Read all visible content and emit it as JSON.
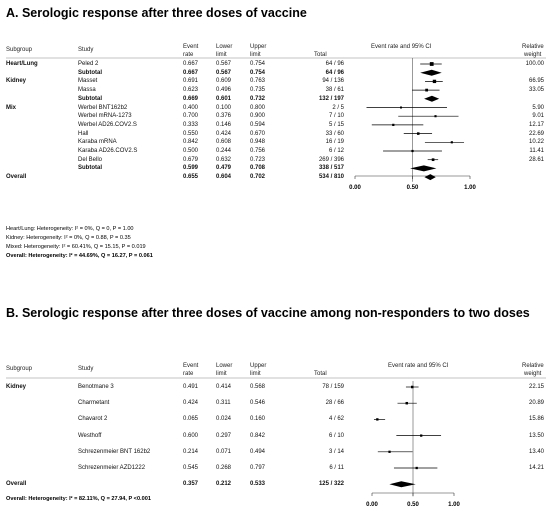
{
  "panels": [
    {
      "title": "A. Serologic response after three doses of vaccine",
      "headers": {
        "subgroup": "Subgroup",
        "study": "Study",
        "event": [
          "Event",
          "rate"
        ],
        "lower": [
          "Lower",
          "limit"
        ],
        "upper": [
          "Upper",
          "limit"
        ],
        "total": "Total",
        "forest": "Event rate and 95% CI",
        "weight": [
          "Relative",
          "weight"
        ]
      },
      "rows": [
        {
          "subgroup": "Heart/Lung",
          "study": "Peled 2",
          "event": "0.667",
          "lower": "0.567",
          "upper": "0.754",
          "total": "64 / 96",
          "weight": "100.00",
          "bold": false
        },
        {
          "subgroup": "",
          "study": "Subtotal",
          "event": "0.667",
          "lower": "0.567",
          "upper": "0.754",
          "total": "64 / 96",
          "weight": "",
          "bold": true
        },
        {
          "subgroup": "Kidney",
          "study": "Masset",
          "event": "0.691",
          "lower": "0.609",
          "upper": "0.763",
          "total": "94 / 136",
          "weight": "66.95",
          "bold": false
        },
        {
          "subgroup": "",
          "study": "Massa",
          "event": "0.623",
          "lower": "0.496",
          "upper": "0.735",
          "total": "38 / 61",
          "weight": "33.05",
          "bold": false
        },
        {
          "subgroup": "",
          "study": "Subtotal",
          "event": "0.669",
          "lower": "0.601",
          "upper": "0.732",
          "total": "132 / 197",
          "weight": "",
          "bold": true
        },
        {
          "subgroup": "Mix",
          "study": "Werbel BNT162b2",
          "event": "0.400",
          "lower": "0.100",
          "upper": "0.800",
          "total": "2 / 5",
          "weight": "5.90",
          "bold": false
        },
        {
          "subgroup": "",
          "study": "Werbel mRNA-1273",
          "event": "0.700",
          "lower": "0.376",
          "upper": "0.900",
          "total": "7 / 10",
          "weight": "9.01",
          "bold": false
        },
        {
          "subgroup": "",
          "study": "Werbel AD26.COV2.S",
          "event": "0.333",
          "lower": "0.146",
          "upper": "0.594",
          "total": "5 / 15",
          "weight": "12.17",
          "bold": false
        },
        {
          "subgroup": "",
          "study": "Hall",
          "event": "0.550",
          "lower": "0.424",
          "upper": "0.670",
          "total": "33 / 60",
          "weight": "22.69",
          "bold": false
        },
        {
          "subgroup": "",
          "study": "Karaba mRNA",
          "event": "0.842",
          "lower": "0.608",
          "upper": "0.948",
          "total": "16 / 19",
          "weight": "10.22",
          "bold": false
        },
        {
          "subgroup": "",
          "study": "Karaba AD26.COV2.S",
          "event": "0.500",
          "lower": "0.244",
          "upper": "0.756",
          "total": "6 / 12",
          "weight": "11.41",
          "bold": false
        },
        {
          "subgroup": "",
          "study": "Del Bello",
          "event": "0.679",
          "lower": "0.632",
          "upper": "0.723",
          "total": "269 / 396",
          "weight": "28.61",
          "bold": false
        },
        {
          "subgroup": "",
          "study": "Subtotal",
          "event": "0.599",
          "lower": "0.479",
          "upper": "0.708",
          "total": "338 / 517",
          "weight": "",
          "bold": true
        },
        {
          "subgroup": "Overall",
          "study": "",
          "event": "0.655",
          "lower": "0.604",
          "upper": "0.702",
          "total": "534 / 810",
          "weight": "",
          "bold": true
        }
      ],
      "axis_ticks": [
        "0.00",
        "0.50",
        "1.00"
      ],
      "footnotes": [
        "Heart/Lung: Heterogeneity: I² = 0%, Q = 0, P = 1.00",
        "Kidney: Heterogeneity: I² = 0%, Q = 0.88, P = 0.35",
        "Mixed: Heterogeneity: I² = 60.41%, Q = 15.15, P = 0.019",
        "Overall: Heterogeneity: I² = 44.69%, Q = 16.27, P = 0.061"
      ]
    },
    {
      "title": "B. Serologic response after three doses of vaccine among non-responders to two doses",
      "headers": {
        "subgroup": "Subgroup",
        "study": "Study",
        "event": [
          "Event",
          "rate"
        ],
        "lower": [
          "Lower",
          "limit"
        ],
        "upper": [
          "Upper",
          "limit"
        ],
        "total": "Total",
        "forest": "Event rate and 95% CI",
        "weight": [
          "Relative",
          "weight"
        ]
      },
      "rows": [
        {
          "subgroup": "Kidney",
          "study": "Benotmane 3",
          "event": "0.491",
          "lower": "0.414",
          "upper": "0.568",
          "total": "78 / 159",
          "weight": "22.15",
          "bold": false
        },
        {
          "subgroup": "",
          "study": "Charmetant",
          "event": "0.424",
          "lower": "0.311",
          "upper": "0.546",
          "total": "28 / 66",
          "weight": "20.89",
          "bold": false
        },
        {
          "subgroup": "",
          "study": "Chavarot 2",
          "event": "0.065",
          "lower": "0.024",
          "upper": "0.160",
          "total": "4 / 62",
          "weight": "15.86",
          "bold": false
        },
        {
          "subgroup": "",
          "study": "Westhoff",
          "event": "0.600",
          "lower": "0.297",
          "upper": "0.842",
          "total": "6 / 10",
          "weight": "13.50",
          "bold": false
        },
        {
          "subgroup": "",
          "study": "Schrezenmeier BNT 162b2",
          "event": "0.214",
          "lower": "0.071",
          "upper": "0.494",
          "total": "3 / 14",
          "weight": "13.40",
          "bold": false
        },
        {
          "subgroup": "",
          "study": "Schrezenmeier AZD1222",
          "event": "0.545",
          "lower": "0.268",
          "upper": "0.797",
          "total": "6 / 11",
          "weight": "14.21",
          "bold": false
        },
        {
          "subgroup": "Overall",
          "study": "",
          "event": "0.357",
          "lower": "0.212",
          "upper": "0.533",
          "total": "125 / 322",
          "weight": "",
          "bold": true
        }
      ],
      "axis_ticks": [
        "0.00",
        "0.50",
        "1.00"
      ],
      "footnotes": [
        "Overall: Heterogeneity: I² = 82.11%, Q = 27.94, P <0.001"
      ]
    }
  ],
  "chart_data": [
    {
      "type": "forest",
      "title": "A. Serologic response after three doses of vaccine",
      "xlim": [
        0,
        1
      ],
      "series": [
        {
          "name": "Peled 2",
          "value": 0.667,
          "lower": 0.567,
          "upper": 0.754,
          "weight": 100.0
        },
        {
          "name": "Subtotal",
          "value": 0.667,
          "lower": 0.567,
          "upper": 0.754,
          "summary": true
        },
        {
          "name": "Masset",
          "value": 0.691,
          "lower": 0.609,
          "upper": 0.763,
          "weight": 66.95
        },
        {
          "name": "Massa",
          "value": 0.623,
          "lower": 0.496,
          "upper": 0.735,
          "weight": 33.05
        },
        {
          "name": "Subtotal",
          "value": 0.669,
          "lower": 0.601,
          "upper": 0.732,
          "summary": true
        },
        {
          "name": "Werbel BNT162b2",
          "value": 0.4,
          "lower": 0.1,
          "upper": 0.8,
          "weight": 5.9
        },
        {
          "name": "Werbel mRNA-1273",
          "value": 0.7,
          "lower": 0.376,
          "upper": 0.9,
          "weight": 9.01
        },
        {
          "name": "Werbel AD26.COV2.S",
          "value": 0.333,
          "lower": 0.146,
          "upper": 0.594,
          "weight": 12.17
        },
        {
          "name": "Hall",
          "value": 0.55,
          "lower": 0.424,
          "upper": 0.67,
          "weight": 22.69
        },
        {
          "name": "Karaba mRNA",
          "value": 0.842,
          "lower": 0.608,
          "upper": 0.948,
          "weight": 10.22
        },
        {
          "name": "Karaba AD26.COV2.S",
          "value": 0.5,
          "lower": 0.244,
          "upper": 0.756,
          "weight": 11.41
        },
        {
          "name": "Del Bello",
          "value": 0.679,
          "lower": 0.632,
          "upper": 0.723,
          "weight": 28.61
        },
        {
          "name": "Subtotal",
          "value": 0.599,
          "lower": 0.479,
          "upper": 0.708,
          "summary": true
        },
        {
          "name": "Overall",
          "value": 0.655,
          "lower": 0.604,
          "upper": 0.702,
          "summary": true
        }
      ]
    },
    {
      "type": "forest",
      "title": "B. Serologic response after three doses of vaccine among non-responders to two doses",
      "xlim": [
        0,
        1
      ],
      "series": [
        {
          "name": "Benotmane 3",
          "value": 0.491,
          "lower": 0.414,
          "upper": 0.568,
          "weight": 22.15
        },
        {
          "name": "Charmetant",
          "value": 0.424,
          "lower": 0.311,
          "upper": 0.546,
          "weight": 20.89
        },
        {
          "name": "Chavarot 2",
          "value": 0.065,
          "lower": 0.024,
          "upper": 0.16,
          "weight": 15.86
        },
        {
          "name": "Westhoff",
          "value": 0.6,
          "lower": 0.297,
          "upper": 0.842,
          "weight": 13.5
        },
        {
          "name": "Schrezenmeier BNT 162b2",
          "value": 0.214,
          "lower": 0.071,
          "upper": 0.494,
          "weight": 13.4
        },
        {
          "name": "Schrezenmeier AZD1222",
          "value": 0.545,
          "lower": 0.268,
          "upper": 0.797,
          "weight": 14.21
        },
        {
          "name": "Overall",
          "value": 0.357,
          "lower": 0.212,
          "upper": 0.533,
          "summary": true
        }
      ]
    }
  ]
}
